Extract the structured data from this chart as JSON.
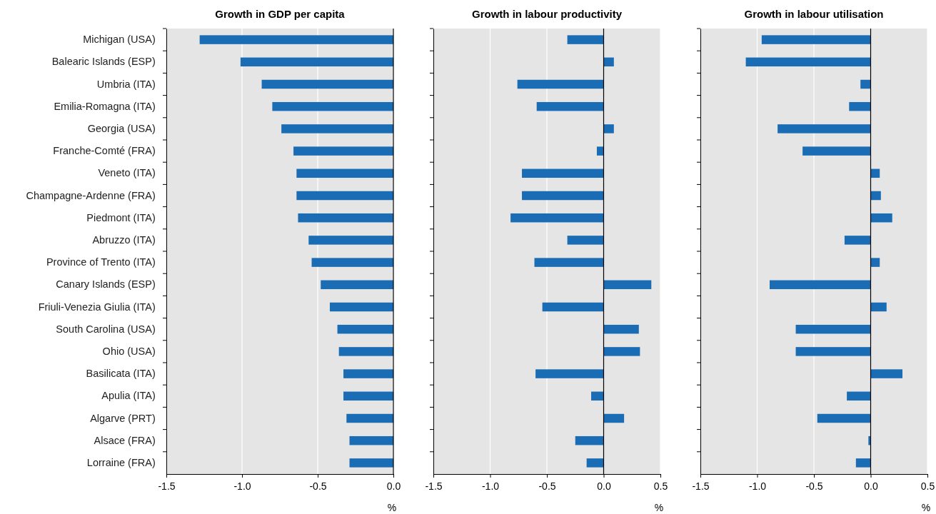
{
  "chart_data": [
    {
      "type": "bar",
      "orientation": "horizontal",
      "title": "Growth in GDP per capita",
      "xlabel": "%",
      "categories": [
        "Michigan (USA)",
        "Balearic Islands (ESP)",
        "Umbria (ITA)",
        "Emilia-Romagna (ITA)",
        "Georgia (USA)",
        "Franche-Comté (FRA)",
        "Veneto (ITA)",
        "Champagne-Ardenne (FRA)",
        "Piedmont (ITA)",
        "Abruzzo (ITA)",
        "Province of Trento (ITA)",
        "Canary Islands (ESP)",
        "Friuli-Venezia Giulia (ITA)",
        "South Carolina (USA)",
        "Ohio (USA)",
        "Basilicata  (ITA)",
        "Apulia (ITA)",
        "Algarve (PRT)",
        "Alsace  (FRA)",
        "Lorraine (FRA)"
      ],
      "values": [
        -1.28,
        -1.01,
        -0.87,
        -0.8,
        -0.74,
        -0.66,
        -0.64,
        -0.64,
        -0.63,
        -0.56,
        -0.54,
        -0.48,
        -0.42,
        -0.37,
        -0.36,
        -0.33,
        -0.33,
        -0.31,
        -0.29,
        -0.29
      ],
      "color": "#1a6db5",
      "xlim": [
        -1.5,
        0
      ],
      "xticks": [
        {
          "value": -1.5,
          "label": "-1.5"
        },
        {
          "value": -1,
          "label": "-1.0"
        },
        {
          "value": -0.5,
          "label": "-0.5"
        },
        {
          "value": 0,
          "label": "0.0"
        }
      ],
      "grid": "x"
    },
    {
      "type": "bar",
      "orientation": "horizontal",
      "title": "Growth in labour productivity",
      "xlabel": "%",
      "categories": [
        null,
        null,
        null,
        null,
        null,
        null,
        null,
        null,
        null,
        null,
        null,
        null,
        null,
        null,
        null,
        null,
        null,
        null,
        null,
        null
      ],
      "values": [
        -0.32,
        0.09,
        -0.76,
        -0.59,
        0.09,
        -0.06,
        -0.72,
        -0.72,
        -0.82,
        -0.32,
        -0.61,
        0.42,
        -0.54,
        0.31,
        0.32,
        -0.6,
        -0.11,
        0.18,
        -0.25,
        -0.15
      ],
      "color": "#1a6db5",
      "xlim": [
        -1.5,
        0.5
      ],
      "xticks": [
        {
          "value": -1.5,
          "label": "-1.5"
        },
        {
          "value": -1,
          "label": "-1.0"
        },
        {
          "value": -0.5,
          "label": "-0.5"
        },
        {
          "value": 0,
          "label": "0.0"
        },
        0.5
      ],
      "grid": "x",
      "tick_labels": "x"
    },
    {
      "type": "bar",
      "orientation": "horizontal",
      "title": "Growth in labour utilisation",
      "xlabel": "%",
      "categories": [
        null,
        null,
        null,
        null,
        null,
        null,
        null,
        null,
        null,
        null,
        null,
        null,
        null,
        null,
        null,
        null,
        null,
        null,
        null,
        null
      ],
      "values": [
        -0.96,
        -1.1,
        -0.09,
        -0.19,
        -0.82,
        -0.6,
        0.08,
        0.09,
        0.19,
        -0.23,
        0.08,
        -0.89,
        0.14,
        -0.66,
        -0.66,
        0.28,
        -0.21,
        -0.47,
        -0.02,
        -0.13
      ],
      "color": "#1a6db5",
      "xlim": [
        -1.5,
        0.5
      ],
      "xticks": [
        {
          "value": -1.5,
          "label": "-1.5"
        },
        {
          "value": -1,
          "label": "-1.0"
        },
        {
          "value": -0.5,
          "label": "-0.5"
        },
        {
          "value": 0,
          "label": "0.0"
        },
        0.5
      ],
      "grid": "x",
      "tick_labels": "x"
    }
  ]
}
